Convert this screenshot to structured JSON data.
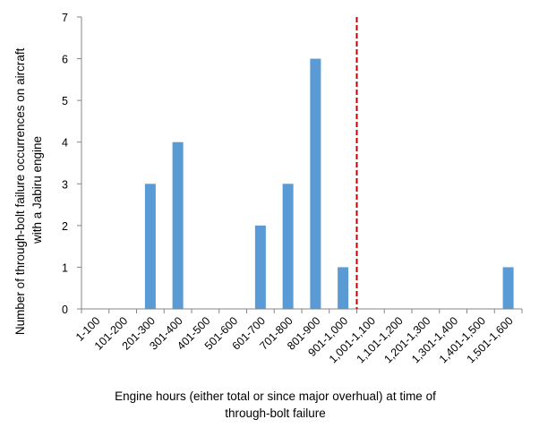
{
  "chart_data": {
    "type": "bar",
    "categories": [
      "1-100",
      "101-200",
      "201-300",
      "301-400",
      "401-500",
      "501-600",
      "601-700",
      "701-800",
      "801-900",
      "901-1,000",
      "1,001-1,100",
      "1,101-1,200",
      "1,201-1,300",
      "1,301-1,400",
      "1,401-1,500",
      "1,501-1,600"
    ],
    "values": [
      0,
      0,
      3,
      4,
      0,
      0,
      2,
      3,
      6,
      1,
      0,
      0,
      0,
      0,
      0,
      1
    ],
    "xlabel": "Engine hours (either total or since major overhual) at time of through-bolt failure",
    "ylabel": "Number of through-bolt failure occurrences on aircraft with a Jabiru engine",
    "ylabel_lines": [
      "Number of through-bolt failure occurrences on aircraft",
      "with a Jabiru engine"
    ],
    "ylim": [
      0,
      7
    ],
    "yticks": [
      0,
      1,
      2,
      3,
      4,
      5,
      6,
      7
    ],
    "grid": false,
    "legend": "none",
    "bar_color": "#5b9bd5",
    "reference_line": {
      "between_categories": [
        "901-1,000",
        "1,001-1,100"
      ],
      "color": "#c00000",
      "style": "dashed"
    }
  }
}
